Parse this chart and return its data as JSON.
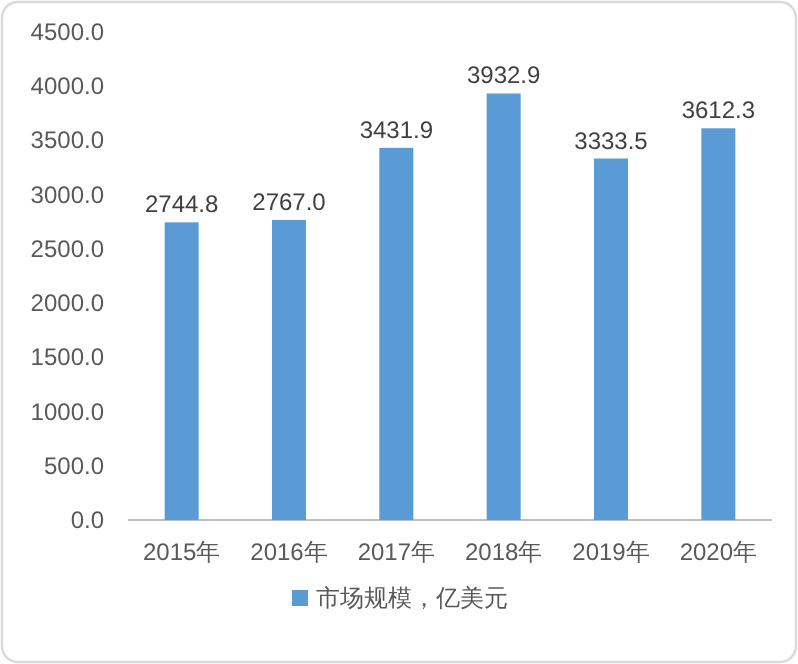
{
  "chart_data": {
    "type": "bar",
    "categories": [
      "2015年",
      "2016年",
      "2017年",
      "2018年",
      "2019年",
      "2020年"
    ],
    "series": [
      {
        "name": "市场规模，亿美元",
        "color": "#5b9bd5",
        "values": [
          2744.8,
          2767.0,
          3431.9,
          3932.9,
          3333.5,
          3612.3
        ],
        "value_labels": [
          "2744.8",
          "2767.0",
          "3431.9",
          "3932.9",
          "3333.5",
          "3612.3"
        ]
      }
    ],
    "ylim": [
      0,
      4500
    ],
    "yticks": [
      {
        "value": 0,
        "label": "0.0"
      },
      {
        "value": 500,
        "label": "500.0"
      },
      {
        "value": 1000,
        "label": "1000.0"
      },
      {
        "value": 1500,
        "label": "1500.0"
      },
      {
        "value": 2000,
        "label": "2000.0"
      },
      {
        "value": 2500,
        "label": "2500.0"
      },
      {
        "value": 3000,
        "label": "3000.0"
      },
      {
        "value": 3500,
        "label": "3500.0"
      },
      {
        "value": 4000,
        "label": "4000.0"
      },
      {
        "value": 4500,
        "label": "4500.0"
      }
    ],
    "legend": "bottom"
  }
}
